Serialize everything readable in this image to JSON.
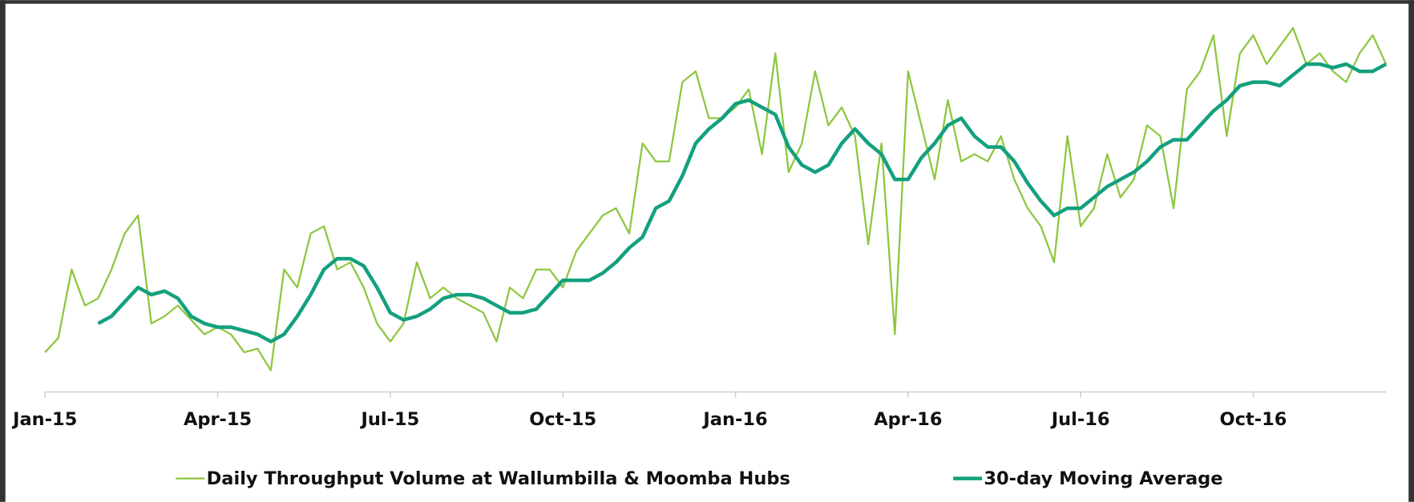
{
  "chart_data": {
    "type": "line",
    "categories": [
      "Jan-15",
      null,
      null,
      null,
      null,
      null,
      null,
      null,
      null,
      null,
      null,
      null,
      null,
      "Apr-15",
      null,
      null,
      null,
      null,
      null,
      null,
      null,
      null,
      null,
      null,
      null,
      null,
      "Jul-15",
      null,
      null,
      null,
      null,
      null,
      null,
      null,
      null,
      null,
      null,
      null,
      null,
      "Oct-15",
      null,
      null,
      null,
      null,
      null,
      null,
      null,
      null,
      null,
      null,
      null,
      null,
      "Jan-16",
      null,
      null,
      null,
      null,
      null,
      null,
      null,
      null,
      null,
      null,
      null,
      null,
      "Apr-16",
      null,
      null,
      null,
      null,
      null,
      null,
      null,
      null,
      null,
      null,
      null,
      null,
      "Jul-16",
      null,
      null,
      null,
      null,
      null,
      null,
      null,
      null,
      null,
      null,
      null,
      null,
      "Oct-16",
      null,
      null,
      null,
      null,
      null,
      null,
      null,
      null,
      null,
      null
    ],
    "series": [
      {
        "name": "Daily Throughput Volume at Wallumbilla & Moomba Hubs",
        "color": "#8dc63f",
        "values": [
          11,
          15,
          34,
          24,
          26,
          34,
          44,
          49,
          19,
          21,
          24,
          20,
          16,
          18,
          16,
          11,
          12,
          6,
          34,
          29,
          44,
          46,
          34,
          36,
          29,
          19,
          14,
          19,
          36,
          26,
          29,
          26,
          24,
          22,
          14,
          29,
          26,
          34,
          34,
          29,
          39,
          44,
          49,
          51,
          44,
          69,
          64,
          64,
          86,
          89,
          76,
          76,
          79,
          84,
          66,
          94,
          61,
          69,
          89,
          74,
          79,
          71,
          41,
          69,
          16,
          89,
          74,
          59,
          81,
          64,
          66,
          64,
          71,
          59,
          51,
          46,
          36,
          71,
          46,
          51,
          66,
          54,
          59,
          74,
          71,
          51,
          84,
          89,
          99,
          71,
          94,
          99,
          91,
          96,
          101,
          91,
          94,
          89,
          86,
          94,
          99,
          91
        ]
      },
      {
        "name": "30-day Moving Average",
        "color": "#13a07e",
        "values": [
          null,
          null,
          null,
          null,
          19,
          21,
          25,
          29,
          27,
          28,
          26,
          21,
          19,
          18,
          18,
          17,
          16,
          14,
          16,
          21,
          27,
          34,
          37,
          37,
          35,
          29,
          22,
          20,
          21,
          23,
          26,
          27,
          27,
          26,
          24,
          22,
          22,
          23,
          27,
          31,
          31,
          31,
          33,
          36,
          40,
          43,
          51,
          53,
          60,
          69,
          73,
          76,
          80,
          81,
          79,
          77,
          68,
          63,
          61,
          63,
          69,
          73,
          69,
          66,
          59,
          59,
          65,
          69,
          74,
          76,
          71,
          68,
          68,
          64,
          58,
          53,
          49,
          51,
          51,
          54,
          57,
          59,
          61,
          64,
          68,
          70,
          70,
          74,
          78,
          81,
          85,
          86,
          86,
          85,
          88,
          91,
          91,
          90,
          91,
          89,
          89,
          91
        ]
      }
    ],
    "ylim": [
      0,
      105
    ],
    "legend": "bottom"
  }
}
